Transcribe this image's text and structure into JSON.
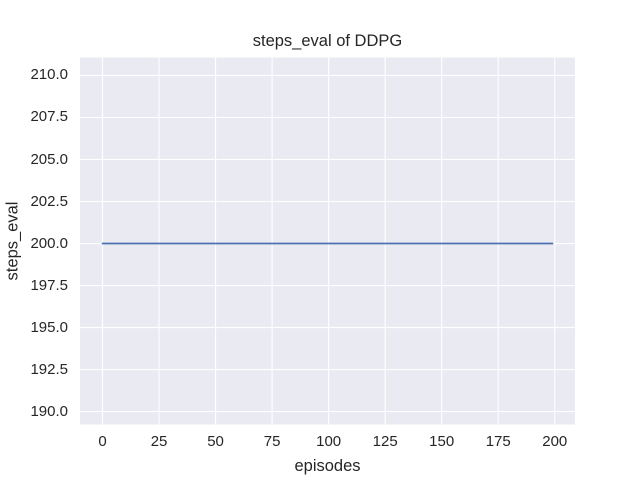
{
  "figure": {
    "background": "#ffffff"
  },
  "chart_data": {
    "type": "line",
    "title": "steps_eval of DDPG",
    "xlabel": "episodes",
    "ylabel": "steps_eval",
    "x_ticks": [
      0,
      25,
      50,
      75,
      100,
      125,
      150,
      175,
      200
    ],
    "x_tick_labels": [
      "0",
      "25",
      "50",
      "75",
      "100",
      "125",
      "150",
      "175",
      "200"
    ],
    "y_ticks": [
      190.0,
      192.5,
      195.0,
      197.5,
      200.0,
      202.5,
      205.0,
      207.5,
      210.0
    ],
    "y_tick_labels": [
      "190.0",
      "192.5",
      "195.0",
      "197.5",
      "200.0",
      "202.5",
      "205.0",
      "207.5",
      "210.0"
    ],
    "xlim": [
      -9.95,
      208.95
    ],
    "ylim": [
      189.23,
      211.07
    ],
    "grid": true,
    "legend": false,
    "series": [
      {
        "name": "steps_eval",
        "x": [
          0,
          199
        ],
        "y": [
          200.0,
          200.0
        ]
      }
    ],
    "style": {
      "plot_bg": "#eaeaf2",
      "grid_color": "#ffffff",
      "text_color": "#262626",
      "line_color": "#4c72b0",
      "line_width": 1.8,
      "grid_width": 1.1
    }
  }
}
